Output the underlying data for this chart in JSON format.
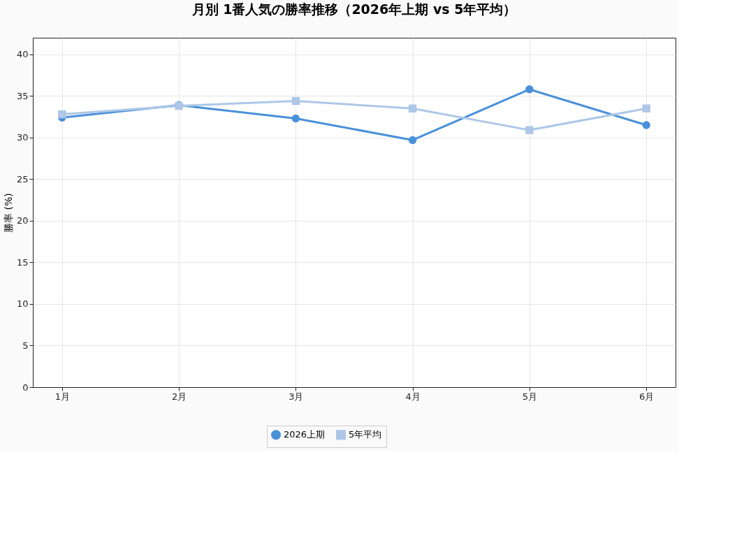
{
  "chart_data": {
    "type": "line",
    "title": "月別 1番人気の勝率推移（2026年上期 vs 5年平均）",
    "ylabel": "勝率 (%)",
    "categories": [
      "1月",
      "2月",
      "3月",
      "4月",
      "5月",
      "6月"
    ],
    "series": [
      {
        "name": "2026上期",
        "color": "#4a90d9",
        "marker": "circle",
        "values": [
          32.4,
          33.9,
          32.3,
          29.7,
          35.8,
          31.5
        ]
      },
      {
        "name": "5年平均",
        "color": "#aec7e8",
        "marker": "square",
        "values": [
          32.8,
          33.8,
          34.4,
          33.5,
          30.9,
          33.5
        ]
      }
    ],
    "ylim": [
      0,
      42
    ],
    "yticks": [
      0,
      5,
      10,
      15,
      20,
      25,
      30,
      35,
      40
    ],
    "grid": true,
    "legend": "bottom",
    "line_style": "solid"
  }
}
